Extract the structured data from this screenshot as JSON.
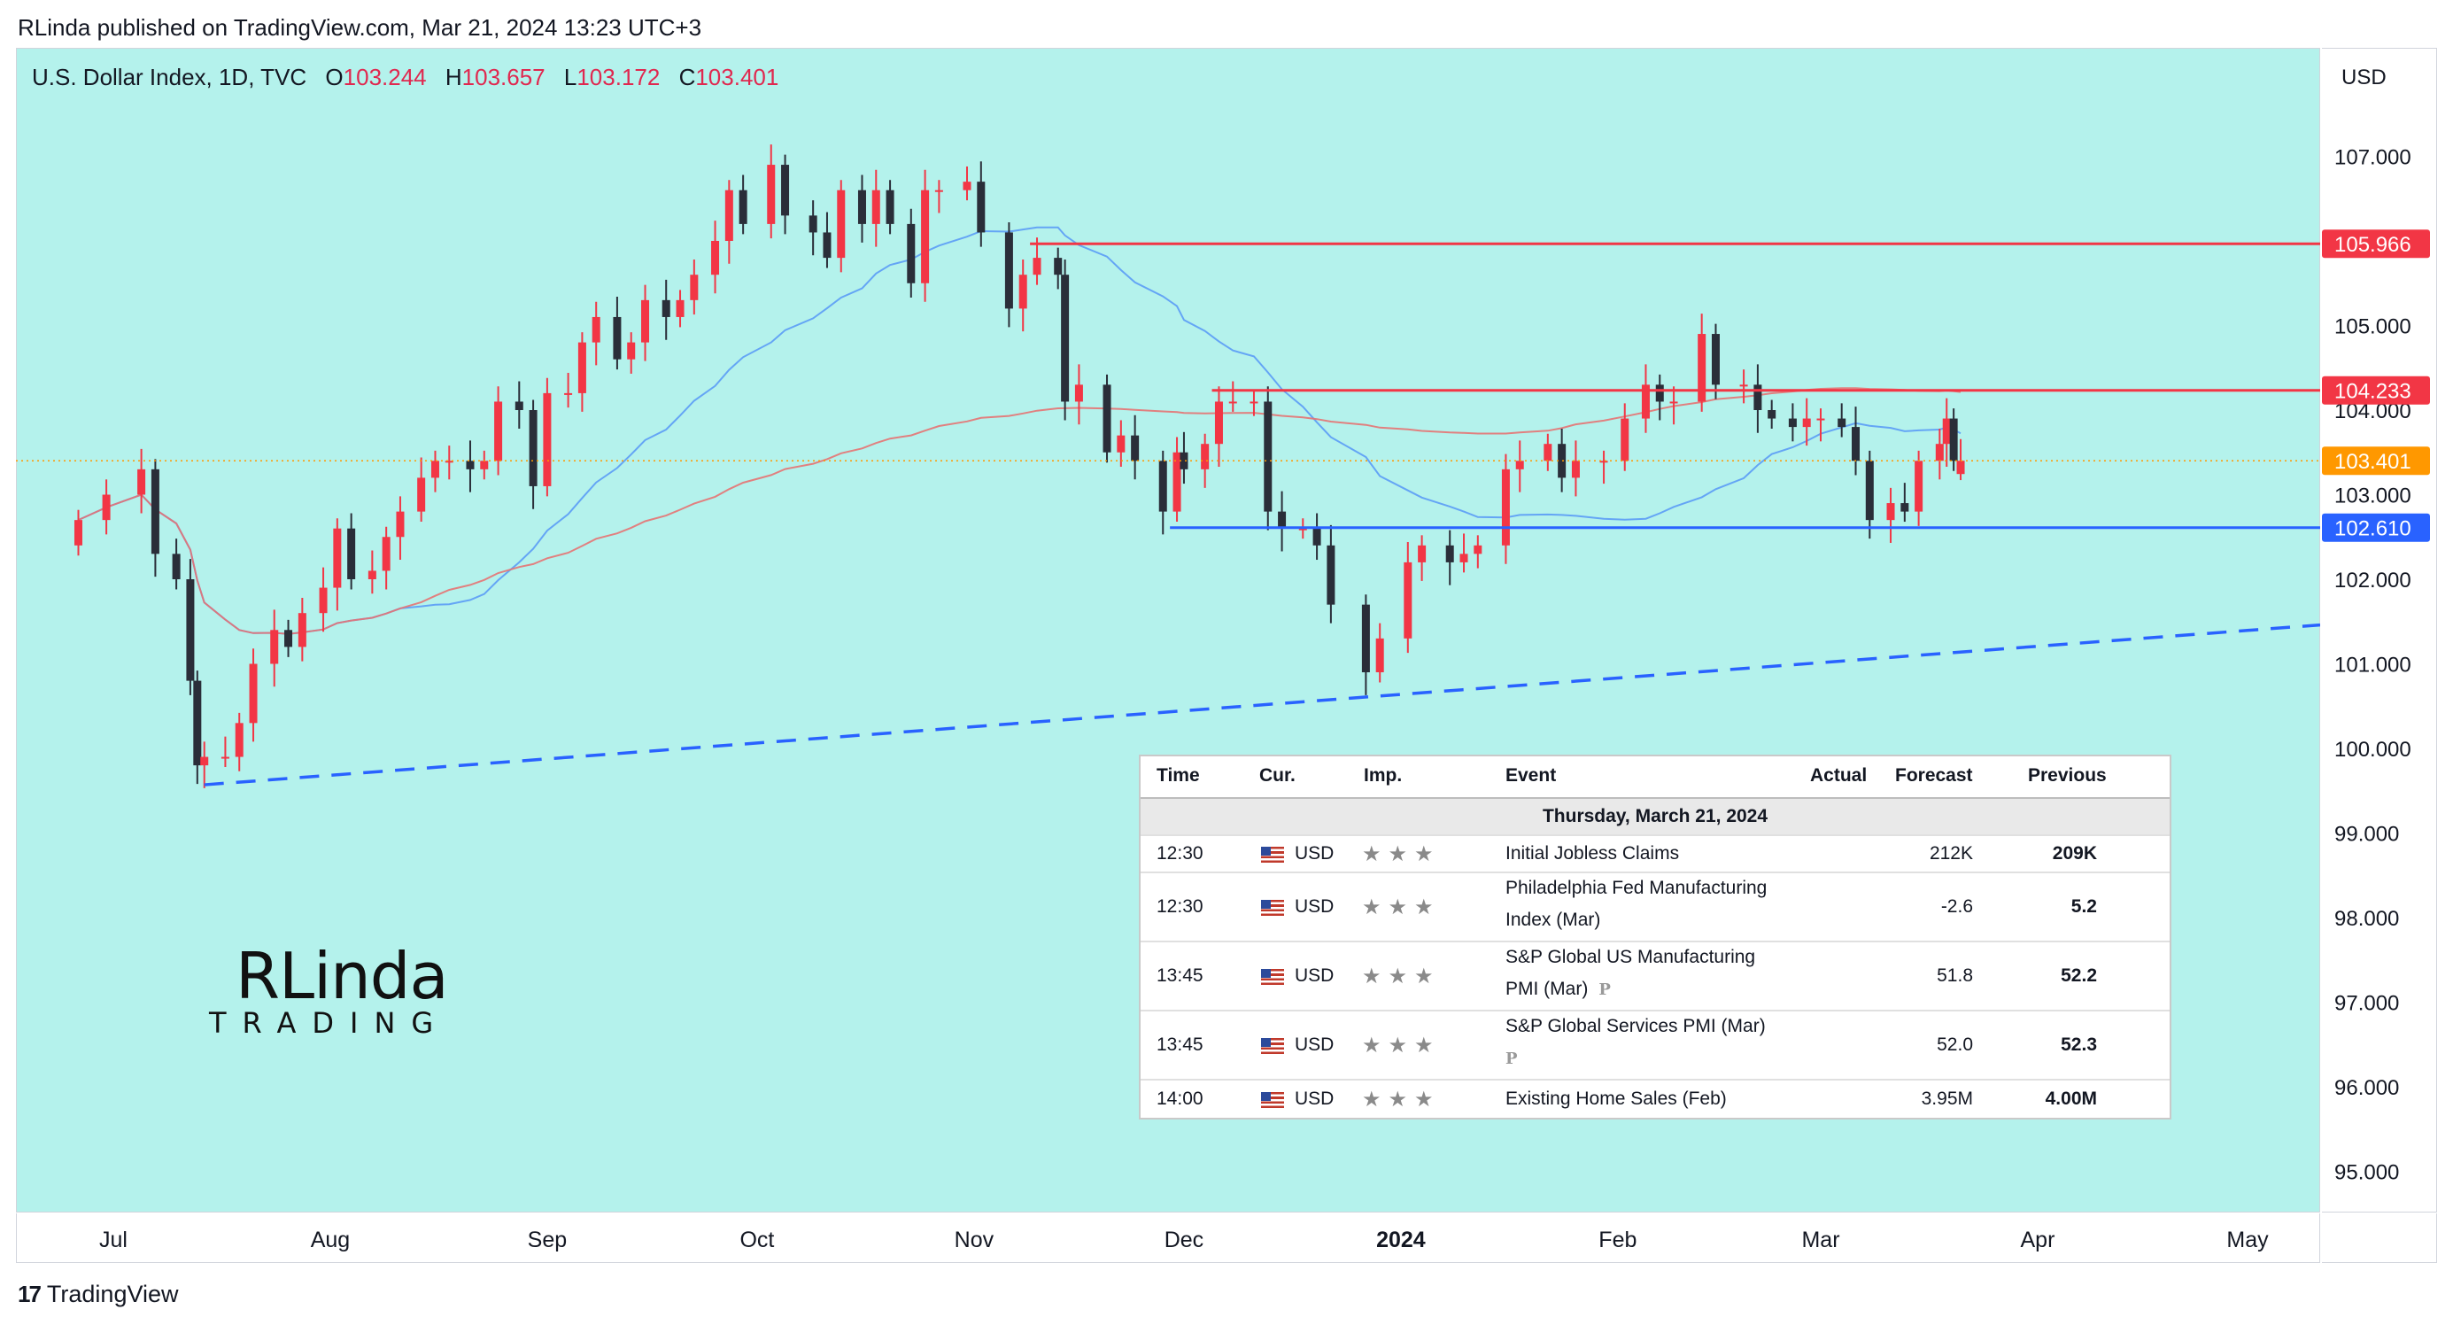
{
  "header": {
    "text": "RLinda published on TradingView.com, Mar 21, 2024 13:23 UTC+3"
  },
  "legend": {
    "symbol": "U.S. Dollar Index, 1D, TVC",
    "open_label": "O",
    "open": "103.244",
    "high_label": "H",
    "high": "103.657",
    "low_label": "L",
    "low": "103.172",
    "close_label": "C",
    "close": "103.401"
  },
  "currency_button": "USD",
  "footer": {
    "brand": "TradingView",
    "logo_mark": "17"
  },
  "watermark": {
    "line1": "RLinda",
    "line2": "TRADING"
  },
  "colors": {
    "bull": "#f23645",
    "bear": "#2a2e39",
    "ma50": "#5b9cf6",
    "ma200": "#e57373",
    "resistance": "#f23645",
    "support": "#2962ff",
    "background": "#b4f2ec",
    "price_tag": "#ff9800"
  },
  "chart_data": {
    "type": "candlestick",
    "symbol": "U.S. Dollar Index",
    "interval": "1D",
    "y_ticks": [
      107.0,
      106.0,
      105.0,
      104.0,
      103.0,
      102.0,
      101.0,
      100.0,
      99.0,
      98.0,
      97.0,
      96.0,
      95.0
    ],
    "y_tick_labels": [
      "107.000",
      "",
      "105.000",
      "104.000",
      "103.000",
      "102.000",
      "101.000",
      "100.000",
      "99.000",
      "98.000",
      "97.000",
      "96.000",
      "95.000"
    ],
    "x_labels": [
      {
        "label": "Jul",
        "date": "2023-07-01"
      },
      {
        "label": "Aug",
        "date": "2023-08-01"
      },
      {
        "label": "Sep",
        "date": "2023-09-01"
      },
      {
        "label": "Oct",
        "date": "2023-10-01"
      },
      {
        "label": "Nov",
        "date": "2023-11-01"
      },
      {
        "label": "Dec",
        "date": "2023-12-01"
      },
      {
        "label": "2024",
        "date": "2024-01-01",
        "bold": true
      },
      {
        "label": "Feb",
        "date": "2024-02-01"
      },
      {
        "label": "Mar",
        "date": "2024-03-01"
      },
      {
        "label": "Apr",
        "date": "2024-04-01"
      },
      {
        "label": "May",
        "date": "2024-05-01"
      }
    ],
    "price_tags": [
      {
        "value": 105.966,
        "label": "105.966",
        "color": "#f23645"
      },
      {
        "value": 104.233,
        "label": "104.233",
        "color": "#f23645"
      },
      {
        "value": 103.401,
        "label": "103.401",
        "color": "#ff9800"
      },
      {
        "value": 102.61,
        "label": "102.610",
        "color": "#2962ff"
      }
    ],
    "horizontal_lines": [
      {
        "name": "resistance-upper",
        "value": 105.966,
        "start": "2023-11-09",
        "color": "#f23645"
      },
      {
        "name": "resistance-lower",
        "value": 104.233,
        "start": "2023-12-05",
        "color": "#f23645"
      },
      {
        "name": "support",
        "value": 102.61,
        "start": "2023-11-29",
        "color": "#2962ff"
      }
    ],
    "trendline": {
      "style": "dashed",
      "color": "#2962ff",
      "p1": {
        "date": "2023-07-14",
        "value": 99.57
      },
      "p2": {
        "date": "2024-05-12",
        "value": 101.46
      }
    },
    "series": [
      {
        "name": "DXY daily close",
        "type": "candles",
        "points": [
          [
            "2023-06-26",
            102.7
          ],
          [
            "2023-06-30",
            103.0
          ],
          [
            "2023-07-05",
            103.3
          ],
          [
            "2023-07-07",
            102.3
          ],
          [
            "2023-07-10",
            102.0
          ],
          [
            "2023-07-12",
            100.8
          ],
          [
            "2023-07-13",
            99.8
          ],
          [
            "2023-07-14",
            99.9
          ],
          [
            "2023-07-17",
            99.9
          ],
          [
            "2023-07-19",
            100.3
          ],
          [
            "2023-07-21",
            101.0
          ],
          [
            "2023-07-24",
            101.4
          ],
          [
            "2023-07-26",
            101.2
          ],
          [
            "2023-07-28",
            101.6
          ],
          [
            "2023-07-31",
            101.9
          ],
          [
            "2023-08-02",
            102.6
          ],
          [
            "2023-08-04",
            102.0
          ],
          [
            "2023-08-07",
            102.1
          ],
          [
            "2023-08-09",
            102.5
          ],
          [
            "2023-08-11",
            102.8
          ],
          [
            "2023-08-14",
            103.2
          ],
          [
            "2023-08-16",
            103.4
          ],
          [
            "2023-08-18",
            103.4
          ],
          [
            "2023-08-21",
            103.3
          ],
          [
            "2023-08-23",
            103.4
          ],
          [
            "2023-08-25",
            104.1
          ],
          [
            "2023-08-28",
            104.0
          ],
          [
            "2023-08-30",
            103.1
          ],
          [
            "2023-09-01",
            104.2
          ],
          [
            "2023-09-04",
            104.2
          ],
          [
            "2023-09-06",
            104.8
          ],
          [
            "2023-09-08",
            105.1
          ],
          [
            "2023-09-11",
            104.6
          ],
          [
            "2023-09-13",
            104.8
          ],
          [
            "2023-09-15",
            105.3
          ],
          [
            "2023-09-18",
            105.1
          ],
          [
            "2023-09-20",
            105.3
          ],
          [
            "2023-09-22",
            105.6
          ],
          [
            "2023-09-25",
            106.0
          ],
          [
            "2023-09-27",
            106.6
          ],
          [
            "2023-09-29",
            106.2
          ],
          [
            "2023-10-03",
            106.9
          ],
          [
            "2023-10-05",
            106.3
          ],
          [
            "2023-10-09",
            106.1
          ],
          [
            "2023-10-11",
            105.8
          ],
          [
            "2023-10-13",
            106.6
          ],
          [
            "2023-10-16",
            106.2
          ],
          [
            "2023-10-18",
            106.6
          ],
          [
            "2023-10-20",
            106.2
          ],
          [
            "2023-10-23",
            105.5
          ],
          [
            "2023-10-25",
            106.6
          ],
          [
            "2023-10-27",
            106.6
          ],
          [
            "2023-10-31",
            106.7
          ],
          [
            "2023-11-02",
            106.1
          ],
          [
            "2023-11-06",
            105.2
          ],
          [
            "2023-11-08",
            105.6
          ],
          [
            "2023-11-10",
            105.8
          ],
          [
            "2023-11-13",
            105.6
          ],
          [
            "2023-11-14",
            104.1
          ],
          [
            "2023-11-16",
            104.3
          ],
          [
            "2023-11-20",
            103.5
          ],
          [
            "2023-11-22",
            103.7
          ],
          [
            "2023-11-24",
            103.4
          ],
          [
            "2023-11-28",
            102.8
          ],
          [
            "2023-11-30",
            103.5
          ],
          [
            "2023-12-01",
            103.3
          ],
          [
            "2023-12-04",
            103.6
          ],
          [
            "2023-12-06",
            104.1
          ],
          [
            "2023-12-08",
            104.1
          ],
          [
            "2023-12-11",
            104.1
          ],
          [
            "2023-12-13",
            102.8
          ],
          [
            "2023-12-15",
            102.6
          ],
          [
            "2023-12-18",
            102.6
          ],
          [
            "2023-12-20",
            102.4
          ],
          [
            "2023-12-22",
            101.7
          ],
          [
            "2023-12-27",
            100.9
          ],
          [
            "2023-12-29",
            101.3
          ],
          [
            "2024-01-02",
            102.2
          ],
          [
            "2024-01-04",
            102.4
          ],
          [
            "2024-01-08",
            102.2
          ],
          [
            "2024-01-10",
            102.3
          ],
          [
            "2024-01-12",
            102.4
          ],
          [
            "2024-01-16",
            103.3
          ],
          [
            "2024-01-18",
            103.4
          ],
          [
            "2024-01-22",
            103.6
          ],
          [
            "2024-01-24",
            103.2
          ],
          [
            "2024-01-26",
            103.4
          ],
          [
            "2024-01-30",
            103.4
          ],
          [
            "2024-02-02",
            103.9
          ],
          [
            "2024-02-05",
            104.3
          ],
          [
            "2024-02-07",
            104.1
          ],
          [
            "2024-02-09",
            104.1
          ],
          [
            "2024-02-13",
            104.9
          ],
          [
            "2024-02-15",
            104.3
          ],
          [
            "2024-02-19",
            104.3
          ],
          [
            "2024-02-21",
            104.0
          ],
          [
            "2024-02-23",
            103.9
          ],
          [
            "2024-02-26",
            103.8
          ],
          [
            "2024-02-28",
            103.9
          ],
          [
            "2024-03-01",
            103.9
          ],
          [
            "2024-03-04",
            103.8
          ],
          [
            "2024-03-06",
            103.4
          ],
          [
            "2024-03-08",
            102.7
          ],
          [
            "2024-03-11",
            102.9
          ],
          [
            "2024-03-13",
            102.8
          ],
          [
            "2024-03-15",
            103.4
          ],
          [
            "2024-03-18",
            103.6
          ],
          [
            "2024-03-19",
            103.9
          ],
          [
            "2024-03-20",
            103.4
          ],
          [
            "2024-03-21",
            103.4
          ]
        ]
      },
      {
        "name": "MA 50",
        "type": "line",
        "color": "#5b9cf6"
      },
      {
        "name": "MA 200",
        "type": "line",
        "color": "#e57373"
      }
    ]
  },
  "calendar": {
    "headers": {
      "time": "Time",
      "cur": "Cur.",
      "imp": "Imp.",
      "event": "Event",
      "actual": "Actual",
      "forecast": "Forecast",
      "previous": "Previous"
    },
    "date": "Thursday, March 21, 2024",
    "rows": [
      {
        "time": "12:30",
        "cur": "USD",
        "stars": "★★★",
        "event1": "Initial Jobless Claims",
        "event2": "",
        "badge": "",
        "actual": "",
        "forecast": "212K",
        "previous": "209K"
      },
      {
        "time": "12:30",
        "cur": "USD",
        "stars": "★★★",
        "event1": "Philadelphia Fed Manufacturing",
        "event2": "Index (Mar)",
        "badge": "",
        "actual": "",
        "forecast": "-2.6",
        "previous": "5.2"
      },
      {
        "time": "13:45",
        "cur": "USD",
        "stars": "★★★",
        "event1": "S&P Global US Manufacturing",
        "event2": "PMI (Mar)",
        "badge": "P",
        "actual": "",
        "forecast": "51.8",
        "previous": "52.2"
      },
      {
        "time": "13:45",
        "cur": "USD",
        "stars": "★★★",
        "event1": "S&P Global Services PMI (Mar)",
        "event2": "",
        "badge": "P",
        "actual": "",
        "forecast": "52.0",
        "previous": "52.3"
      },
      {
        "time": "14:00",
        "cur": "USD",
        "stars": "★★★",
        "event1": "Existing Home Sales (Feb)",
        "event2": "",
        "badge": "",
        "actual": "",
        "forecast": "3.95M",
        "previous": "4.00M"
      }
    ]
  }
}
